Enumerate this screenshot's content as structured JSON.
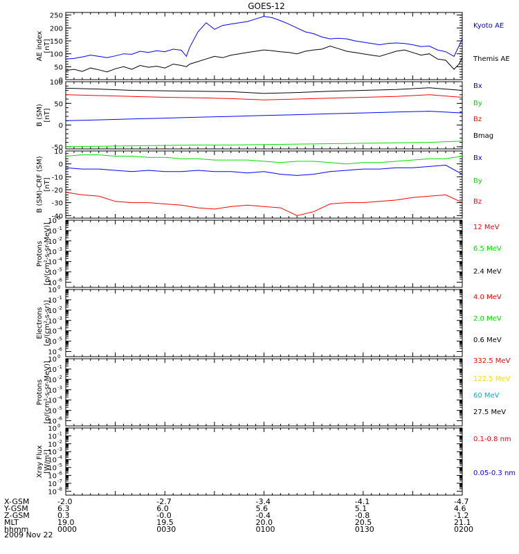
{
  "title": "GOES-12",
  "date": "2009 Nov 22",
  "footer": {
    "rows": [
      {
        "label": "X-GSM",
        "values": [
          "-2.0",
          "-2.7",
          "-3.4",
          "-4.1",
          "-4.7"
        ]
      },
      {
        "label": "Y-GSM",
        "values": [
          "6.3",
          "6.0",
          "5.6",
          "5.1",
          "4.6"
        ]
      },
      {
        "label": "Z-GSM",
        "values": [
          "0.3",
          "-0.0",
          "-0.4",
          "-0.8",
          "-1.2"
        ]
      },
      {
        "label": "MLT",
        "values": [
          "19.0",
          "19.5",
          "20.0",
          "20.5",
          "21.1"
        ]
      },
      {
        "label": "hhmm",
        "values": [
          "0000",
          "0030",
          "0100",
          "0130",
          "0200"
        ]
      }
    ]
  },
  "colors": {
    "black": "#000000",
    "blue": "#0000ff",
    "red": "#ff0000",
    "green": "#00dd00",
    "yellow": "#ffd700",
    "cyan": "#00aaee"
  },
  "chart_data": [
    {
      "type": "line",
      "ylabel": [
        "AE index",
        "[nT]"
      ],
      "ylim": [
        0,
        260
      ],
      "yticks": [
        0,
        50,
        100,
        150,
        200,
        250
      ],
      "scale": "linear",
      "x": [
        0,
        5,
        10,
        15,
        20,
        25,
        30,
        35,
        40,
        45,
        50,
        55,
        60,
        65,
        70,
        73,
        75,
        80,
        85,
        90,
        95,
        100,
        105,
        110,
        115,
        120,
        125,
        130,
        135,
        140,
        145,
        150,
        155,
        160,
        165,
        170,
        175,
        180,
        185,
        190,
        195,
        200,
        205,
        210,
        215,
        220,
        225,
        230,
        235,
        238,
        240
      ],
      "series": [
        {
          "name": "Kyoto AE",
          "color": "blue",
          "values": [
            80,
            82,
            88,
            95,
            90,
            85,
            92,
            100,
            98,
            110,
            105,
            112,
            108,
            118,
            114,
            90,
            125,
            185,
            220,
            195,
            210,
            215,
            220,
            225,
            235,
            245,
            240,
            228,
            215,
            200,
            185,
            178,
            165,
            158,
            160,
            158,
            150,
            145,
            140,
            135,
            140,
            142,
            140,
            135,
            128,
            130,
            115,
            108,
            90,
            130,
            158
          ]
        },
        {
          "name": "Themis AE",
          "color": "black",
          "values": [
            35,
            40,
            32,
            45,
            38,
            30,
            42,
            50,
            40,
            55,
            48,
            52,
            45,
            60,
            55,
            50,
            60,
            70,
            80,
            90,
            85,
            95,
            100,
            105,
            110,
            115,
            112,
            108,
            105,
            100,
            110,
            115,
            118,
            130,
            120,
            110,
            105,
            100,
            95,
            90,
            100,
            110,
            115,
            105,
            95,
            100,
            80,
            75,
            40,
            60,
            85
          ]
        }
      ]
    },
    {
      "type": "line",
      "ylabel": [
        "B (SM)",
        "[nT]"
      ],
      "ylim": [
        -55,
        100
      ],
      "yticks": [
        -50,
        0,
        50,
        100
      ],
      "scale": "linear",
      "x": [
        0,
        20,
        40,
        60,
        80,
        100,
        120,
        140,
        160,
        180,
        200,
        220,
        240
      ],
      "series": [
        {
          "name": "Bx",
          "color": "blue",
          "values": [
            10,
            12,
            14,
            16,
            18,
            20,
            22,
            24,
            26,
            28,
            30,
            32,
            28
          ]
        },
        {
          "name": "By",
          "color": "green",
          "values": [
            -50,
            -49,
            -48,
            -47,
            -46,
            -46,
            -45,
            -44,
            -43,
            -42,
            -41,
            -40,
            -37
          ]
        },
        {
          "name": "Bz",
          "color": "red",
          "values": [
            70,
            68,
            66,
            64,
            63,
            61,
            58,
            60,
            62,
            64,
            66,
            70,
            64
          ]
        },
        {
          "name": "Bmag",
          "color": "black",
          "values": [
            85,
            83,
            80,
            79,
            78,
            77,
            73,
            75,
            78,
            80,
            82,
            86,
            80
          ]
        }
      ]
    },
    {
      "type": "line",
      "ylabel": [
        "B (SM)-CRF (SM)",
        "[nT]"
      ],
      "ylim": [
        -42,
        10
      ],
      "yticks": [
        -40,
        -30,
        -20,
        -10,
        0,
        10
      ],
      "scale": "linear",
      "x": [
        0,
        10,
        20,
        30,
        40,
        50,
        60,
        70,
        80,
        90,
        100,
        110,
        120,
        130,
        140,
        150,
        160,
        170,
        180,
        190,
        200,
        210,
        220,
        230,
        240
      ],
      "series": [
        {
          "name": "Bx",
          "color": "blue",
          "values": [
            -3,
            -4,
            -4,
            -5,
            -6,
            -5,
            -6,
            -6,
            -5,
            -6,
            -6,
            -7,
            -6,
            -8,
            -9,
            -8,
            -6,
            -5,
            -4,
            -4,
            -3,
            -3,
            -2,
            -1,
            -8
          ]
        },
        {
          "name": "By",
          "color": "green",
          "values": [
            6,
            7,
            7,
            6,
            6,
            5,
            5,
            4,
            4,
            3,
            3,
            3,
            2,
            1,
            2,
            2,
            1,
            0,
            1,
            1,
            2,
            3,
            4,
            4,
            6
          ]
        },
        {
          "name": "Bz",
          "color": "red",
          "values": [
            -22,
            -24,
            -25,
            -29,
            -30,
            -30,
            -31,
            -32,
            -34,
            -35,
            -33,
            -32,
            -33,
            -34,
            -40,
            -37,
            -31,
            -30,
            -30,
            -29,
            -28,
            -26,
            -25,
            -24,
            -30
          ]
        }
      ]
    },
    {
      "type": "line",
      "ylabel": [
        "Protons",
        "[p/(cm²-s-sr-MeV)]"
      ],
      "ylim": [
        -6.5,
        0
      ],
      "yticks": [
        0,
        -1,
        -2,
        -3,
        -4,
        -5,
        -6
      ],
      "scale": "log",
      "legend": [
        {
          "name": "12 MeV",
          "color": "red"
        },
        {
          "name": "6.5 MeV",
          "color": "green"
        },
        {
          "name": "2.4 MeV",
          "color": "black"
        }
      ],
      "series": []
    },
    {
      "type": "line",
      "ylabel": [
        "Electrons",
        "[e/(cm²-s-sr)]"
      ],
      "ylim": [
        -6.5,
        0
      ],
      "yticks": [
        0,
        -1,
        -2,
        -3,
        -4,
        -5,
        -6
      ],
      "scale": "log",
      "legend": [
        {
          "name": "4.0 MeV",
          "color": "red"
        },
        {
          "name": "2.0 MeV",
          "color": "green"
        },
        {
          "name": "0.6 MeV",
          "color": "black"
        }
      ],
      "series": []
    },
    {
      "type": "line",
      "ylabel": [
        "Protons",
        "[p/(cm²-s-sr-MeV)]"
      ],
      "ylim": [
        -6.5,
        0
      ],
      "yticks": [
        0,
        -1,
        -2,
        -3,
        -4,
        -5,
        -6
      ],
      "scale": "log",
      "legend": [
        {
          "name": "332.5 MeV",
          "color": "red"
        },
        {
          "name": "122.5 MeV",
          "color": "yellow"
        },
        {
          "name": "60 MeV",
          "color": "cyan"
        },
        {
          "name": "27.5 MeV",
          "color": "black"
        }
      ],
      "series": []
    },
    {
      "type": "line",
      "ylabel": [
        "Xray Flux",
        "[W/m²]"
      ],
      "ylim": [
        -8.5,
        0
      ],
      "yticks": [
        0,
        -1,
        -2,
        -3,
        -4,
        -5,
        -6,
        -7,
        -8
      ],
      "scale": "log",
      "legend": [
        {
          "name": "0.1-0.8 nm",
          "color": "red"
        },
        {
          "name": "0.05-0.3 nm",
          "color": "blue"
        }
      ],
      "series": []
    }
  ]
}
